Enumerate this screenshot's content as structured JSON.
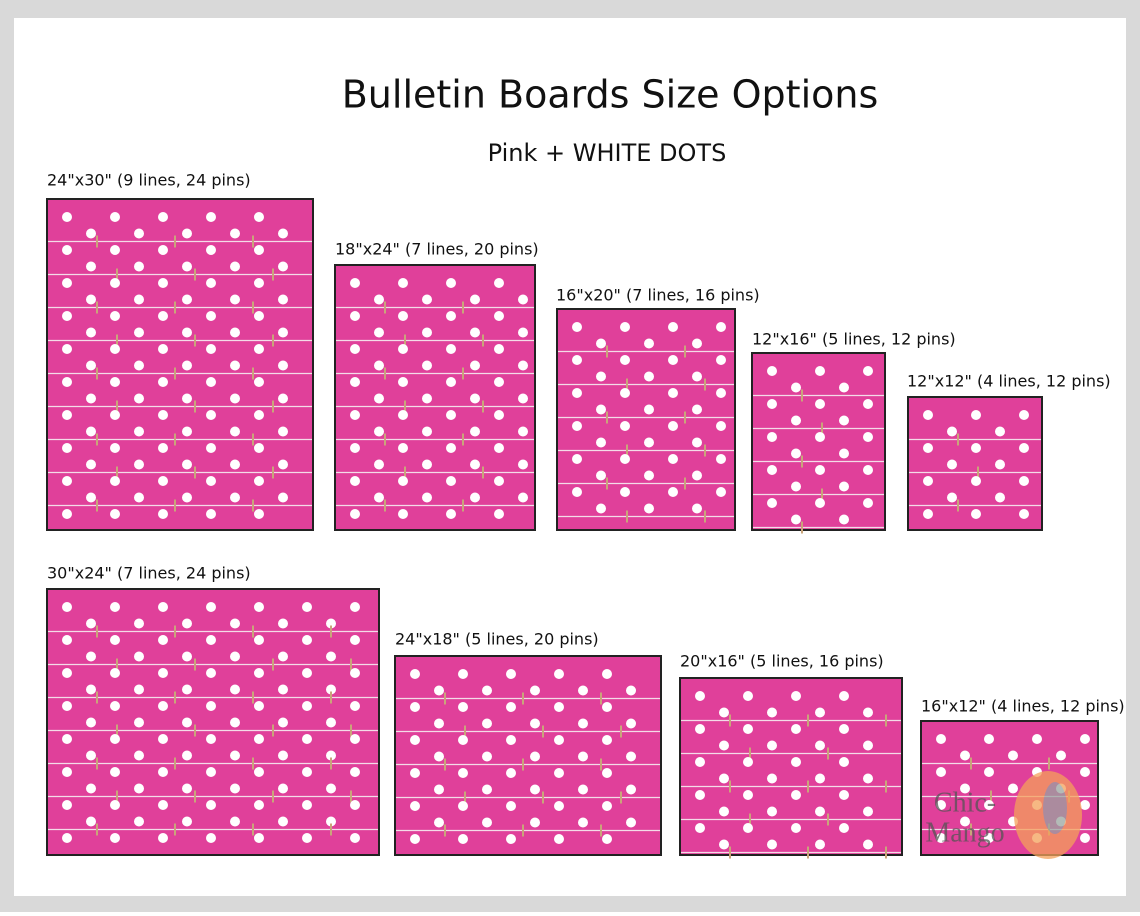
{
  "header": {
    "title": "Bulletin Boards Size Options",
    "subtitle": "Pink + WHITE DOTS"
  },
  "boards": [
    {
      "label": "24\"x30\" (9 lines, 24 pins)"
    },
    {
      "label": "18\"x24\" (7 lines, 20 pins)"
    },
    {
      "label": "16\"x20\" (7 lines, 16 pins)"
    },
    {
      "label": "12\"x16\" (5 lines, 12 pins)"
    },
    {
      "label": "12\"x12\" (4 lines, 12 pins)"
    },
    {
      "label": "30\"x24\" (7 lines, 24 pins)"
    },
    {
      "label": "24\"x18\" (5 lines, 20 pins)"
    },
    {
      "label": "20\"x16\" (5 lines, 16 pins)"
    },
    {
      "label": "16\"x12\" (4 lines, 12 pins)"
    }
  ],
  "watermark": {
    "line1": "Chic-",
    "line2": "Mango"
  }
}
